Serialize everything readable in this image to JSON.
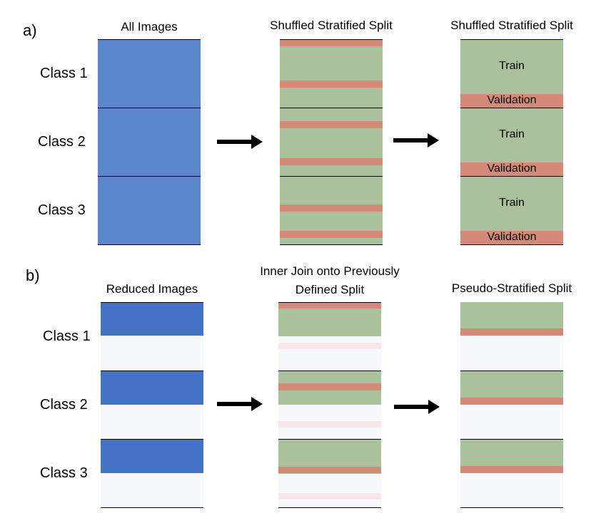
{
  "panel_a": {
    "label": "a)",
    "col1_title": "All Images",
    "col2_title": "Shuffled Stratified Split",
    "col3_title": "Shuffled Stratified Split",
    "classes": [
      "Class 1",
      "Class 2",
      "Class 3"
    ],
    "train_label": "Train",
    "validation_label": "Validation"
  },
  "panel_b": {
    "label": "b)",
    "col1_title": "Reduced Images",
    "col2_title_line1": "Inner Join onto Previously",
    "col2_title_line2": "Defined Split",
    "col3_title": "Pseudo-Stratified Split",
    "classes": [
      "Class 1",
      "Class 2",
      "Class 3"
    ]
  },
  "colors": {
    "all_images": "#5b86cb",
    "reduced_images": "#4472c4",
    "train": "#a9c29b",
    "validation": "#d58a78"
  }
}
